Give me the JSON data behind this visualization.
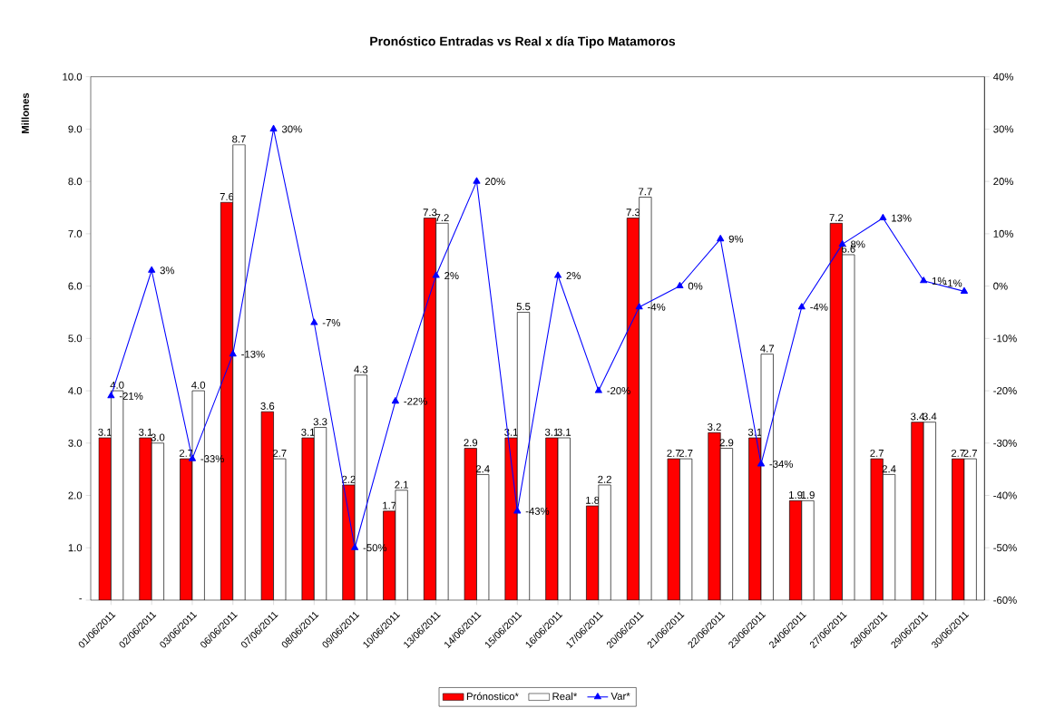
{
  "chart_data": {
    "type": "bar",
    "title": "Pronóstico Entradas vs Real x día Tipo Matamoros",
    "ylabel": "Millones",
    "categories": [
      "01/06/2011",
      "02/06/2011",
      "03/06/2011",
      "06/06/2011",
      "07/06/2011",
      "08/06/2011",
      "09/06/2011",
      "10/06/2011",
      "13/06/2011",
      "14/06/2011",
      "15/06/2011",
      "16/06/2011",
      "17/06/2011",
      "20/06/2011",
      "21/06/2011",
      "22/06/2011",
      "23/06/2011",
      "24/06/2011",
      "27/06/2011",
      "28/06/2011",
      "29/06/2011",
      "30/06/2011"
    ],
    "series": [
      {
        "name": "Prónostico*",
        "color": "#ff0000",
        "values": [
          3.1,
          3.1,
          2.7,
          7.6,
          3.6,
          3.1,
          2.2,
          1.7,
          7.3,
          2.9,
          3.1,
          3.1,
          1.8,
          7.3,
          2.7,
          3.2,
          3.1,
          1.9,
          7.2,
          2.7,
          3.4,
          2.7
        ],
        "value_labels": [
          "3.1",
          "3.1",
          "2.7",
          "7.6",
          "3.6",
          "3.1",
          "2.2",
          "1.7",
          "7.3",
          "2.9",
          "3.1",
          "3.1",
          "1.8",
          "7.3",
          "2.7",
          "3.2",
          "3.1",
          "1.9",
          "7.2",
          "2.7",
          "3.4",
          "2.7"
        ]
      },
      {
        "name": "Real*",
        "color": "#ffffff",
        "values": [
          4.0,
          3.0,
          4.0,
          8.7,
          2.7,
          3.3,
          4.3,
          2.1,
          7.2,
          2.4,
          5.5,
          3.1,
          2.2,
          7.7,
          2.7,
          2.9,
          4.7,
          1.9,
          6.6,
          2.4,
          3.4,
          2.7
        ],
        "value_labels": [
          "4.0",
          "3.0",
          "4.0",
          "8.7",
          "2.7",
          "3.3",
          "4.3",
          "2.1",
          "7.2",
          "2.4",
          "5.5",
          "3.1",
          "2.2",
          "7.7",
          "2.7",
          "2.9",
          "4.7",
          "1.9",
          "6.6",
          "2.4",
          "3.4",
          "2.7"
        ]
      },
      {
        "name": "Var*",
        "type": "line",
        "axis": "y2",
        "color": "#0000ff",
        "marker": "triangle",
        "values": [
          -21,
          3,
          -33,
          -13,
          30,
          -7,
          -50,
          -22,
          2,
          20,
          -43,
          2,
          -20,
          -4,
          0,
          9,
          -34,
          -4,
          8,
          13,
          1,
          -1
        ],
        "value_labels": [
          "-21%",
          "3%",
          "-33%",
          "-13%",
          "30%",
          "-7%",
          "-50%",
          "-22%",
          "2%",
          "20%",
          "-43%",
          "2%",
          "-20%",
          "-4%",
          "0%",
          "9%",
          "-34%",
          "-4%",
          "8%",
          "13%",
          "1%",
          "-1%"
        ]
      }
    ],
    "ylim": [
      0,
      10
    ],
    "yticks": [
      {
        "value": 0,
        "label": "-"
      },
      {
        "value": 1,
        "label": "1.0"
      },
      {
        "value": 2,
        "label": "2.0"
      },
      {
        "value": 3,
        "label": "3.0"
      },
      {
        "value": 4,
        "label": "4.0"
      },
      {
        "value": 5,
        "label": "5.0"
      },
      {
        "value": 6,
        "label": "6.0"
      },
      {
        "value": 7,
        "label": "7.0"
      },
      {
        "value": 8,
        "label": "8.0"
      },
      {
        "value": 9,
        "label": "9.0"
      },
      {
        "value": 10,
        "label": "10.0"
      }
    ],
    "y2lim": [
      -60,
      40
    ],
    "y2ticks": [
      {
        "value": -60,
        "label": "-60%"
      },
      {
        "value": -50,
        "label": "-50%"
      },
      {
        "value": -40,
        "label": "-40%"
      },
      {
        "value": -30,
        "label": "-30%"
      },
      {
        "value": -20,
        "label": "-20%"
      },
      {
        "value": -10,
        "label": "-10%"
      },
      {
        "value": 0,
        "label": "0%"
      },
      {
        "value": 10,
        "label": "10%"
      },
      {
        "value": 20,
        "label": "20%"
      },
      {
        "value": 30,
        "label": "30%"
      },
      {
        "value": 40,
        "label": "40%"
      }
    ],
    "legend": "bottom"
  }
}
